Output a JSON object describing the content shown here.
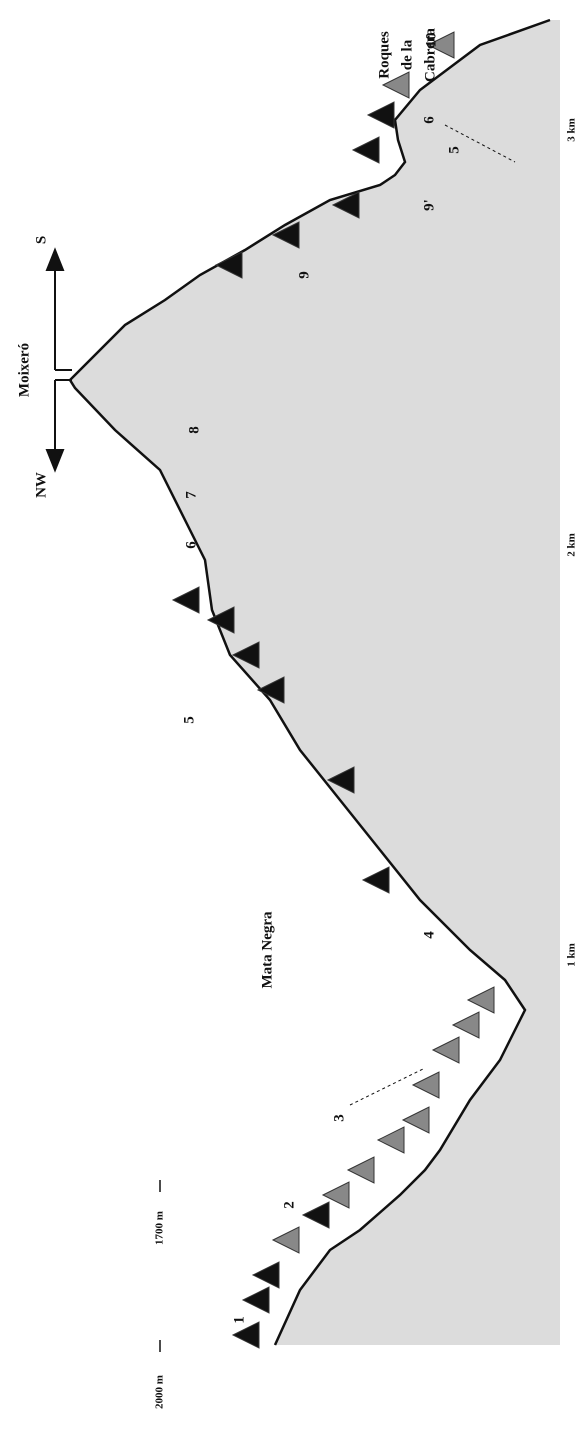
{
  "axes": {
    "elevation": [
      "2000 m",
      "1700 m"
    ],
    "distance": [
      "1 km",
      "2 km",
      "3 km"
    ]
  },
  "places": {
    "mata_negra": "Mata Negra",
    "moixero": "Moixeró",
    "roques": [
      "Roques",
      "de la",
      "Cabrera"
    ]
  },
  "orientation": {
    "left": "NW",
    "right": "S"
  },
  "zones": [
    "1",
    "2",
    "3",
    "4",
    "5",
    "6",
    "7",
    "8",
    "9",
    "9'",
    "5",
    "6",
    "10"
  ]
}
